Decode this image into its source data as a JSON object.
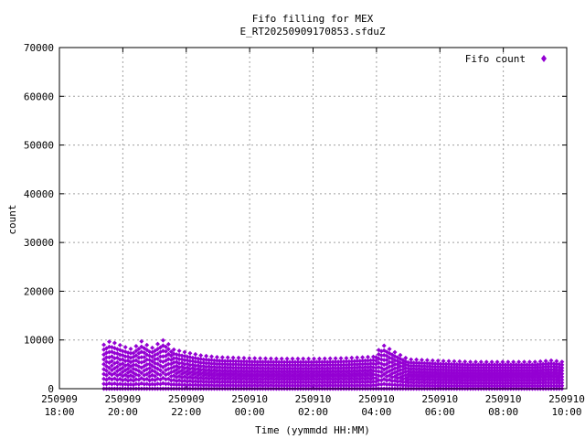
{
  "chart_data": {
    "type": "scatter",
    "title": "Fifo filling for MEX",
    "subtitle": "E_RT20250909170853.sfduZ",
    "xlabel": "Time (yymmdd HH:MM)",
    "ylabel": "count",
    "ylim": [
      0,
      70000
    ],
    "xlim_hours": [
      18,
      34
    ],
    "y_ticks": [
      0,
      10000,
      20000,
      30000,
      40000,
      50000,
      60000,
      70000
    ],
    "y_tick_labels": [
      "0",
      "10000",
      "20000",
      "30000",
      "40000",
      "50000",
      "60000",
      "70000"
    ],
    "x_ticks": [
      {
        "date": "250909",
        "time": "18:00"
      },
      {
        "date": "250909",
        "time": "20:00"
      },
      {
        "date": "250909",
        "time": "22:00"
      },
      {
        "date": "250910",
        "time": "00:00"
      },
      {
        "date": "250910",
        "time": "02:00"
      },
      {
        "date": "250910",
        "time": "04:00"
      },
      {
        "date": "250910",
        "time": "06:00"
      },
      {
        "date": "250910",
        "time": "08:00"
      },
      {
        "date": "250910",
        "time": "10:00"
      }
    ],
    "grid": true,
    "legend_position": "top-right",
    "series": [
      {
        "name": "Fifo count",
        "color": "#9400d3",
        "marker": "diamond",
        "envelope_max": {
          "x_hours": [
            19.4,
            19.6,
            20.0,
            20.3,
            20.6,
            20.9,
            21.3,
            21.6,
            22.0,
            22.5,
            23.0,
            24.0,
            25.0,
            26.0,
            27.0,
            27.9,
            28.2,
            28.6,
            29.0,
            30.0,
            31.0,
            32.0,
            33.0,
            33.5,
            33.9
          ],
          "count": [
            8500,
            9200,
            8200,
            7600,
            9200,
            7800,
            9500,
            7600,
            7000,
            6400,
            6100,
            5900,
            5800,
            5800,
            5900,
            6200,
            8500,
            7000,
            5700,
            5400,
            5200,
            5200,
            5200,
            5500,
            5200
          ]
        }
      }
    ]
  }
}
